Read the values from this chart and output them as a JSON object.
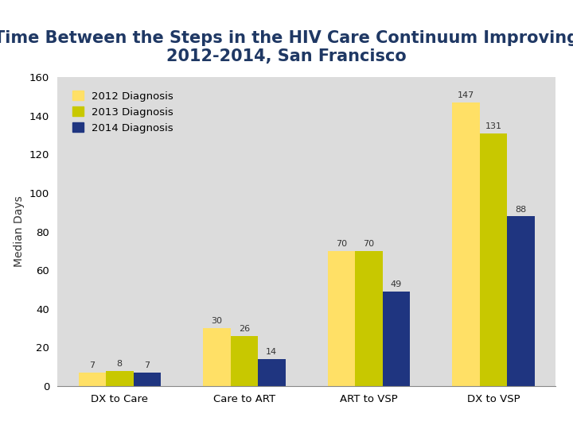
{
  "title_line1": "Time Between the Steps in the HIV Care Continuum Improving",
  "title_line2": "2012-2014, San Francisco",
  "title_color": "#1F3864",
  "ylabel": "Median Days",
  "categories": [
    "DX to Care",
    "Care to ART",
    "ART to VSP",
    "DX to VSP"
  ],
  "series": {
    "2012 Diagnosis": [
      7,
      30,
      70,
      147
    ],
    "2013 Diagnosis": [
      8,
      26,
      70,
      131
    ],
    "2014 Diagnosis": [
      7,
      14,
      49,
      88
    ]
  },
  "colors": {
    "2012 Diagnosis": "#FFE066",
    "2013 Diagnosis": "#C8C800",
    "2014 Diagnosis": "#1F3580"
  },
  "ylim": [
    0,
    160
  ],
  "yticks": [
    0,
    20,
    40,
    60,
    80,
    100,
    120,
    140,
    160
  ],
  "plot_bg_color": "#DCDCDC",
  "fig_bg_color": "#FFFFFF",
  "bar_width": 0.22,
  "label_fontsize": 8,
  "title_fontsize": 15,
  "ylabel_fontsize": 10,
  "tick_fontsize": 9.5,
  "legend_fontsize": 9.5
}
